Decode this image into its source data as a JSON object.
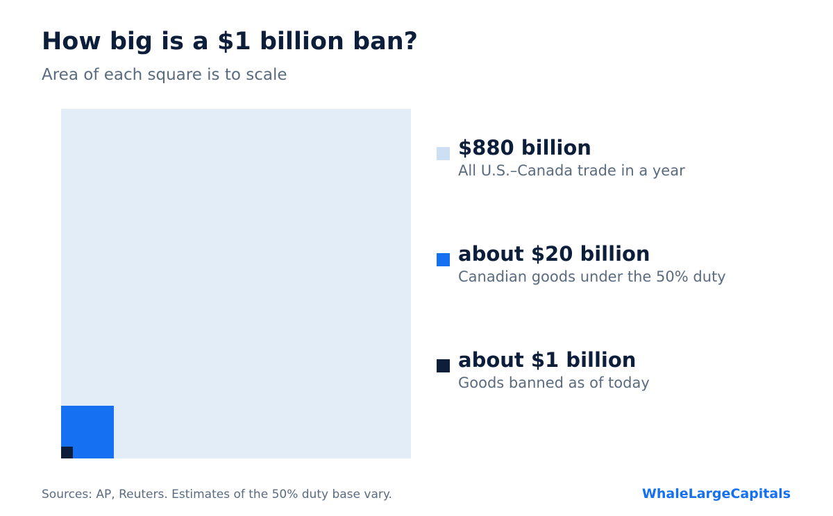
{
  "header": {
    "title": "How big is a $1 billion ban?",
    "subtitle": "Area of each square is to scale"
  },
  "chart_data": {
    "type": "area-squares",
    "scale": "area proportional to value",
    "unit": "USD billions",
    "items": [
      {
        "value": 880,
        "label": "$880 billion",
        "description": "All U.S.–Canada trade in a year",
        "color": "#ccdff5",
        "fill": "#e3edf8"
      },
      {
        "value": 20,
        "label": "about $20 billion",
        "description": "Canadian goods under the 50% duty",
        "color": "#1570f2",
        "fill": "#1570f2"
      },
      {
        "value": 1,
        "label": "about $1 billion",
        "description": "Goods banned as of today",
        "color": "#0c1e3a",
        "fill": "#0c1e3a"
      }
    ]
  },
  "footer": {
    "source": "Sources: AP, Reuters. Estimates of the 50% duty base vary.",
    "brand": "WhaleLargeCapitals"
  }
}
